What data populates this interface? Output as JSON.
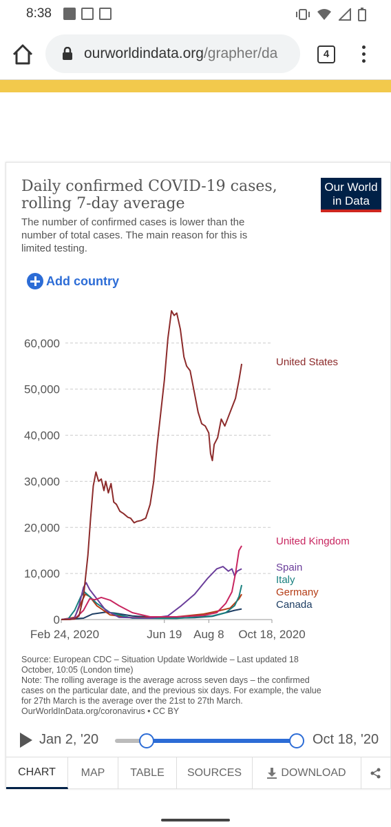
{
  "status_bar": {
    "time": "8:38"
  },
  "browser": {
    "url_host": "ourworldindata.org",
    "url_path": "/grapher/da",
    "tab_count": "4"
  },
  "card": {
    "title": "Daily confirmed COVID-19 cases, rolling 7-day average",
    "subtitle": "The number of confirmed cases is lower than the number of total cases. The main reason for this is limited testing.",
    "logo_line1": "Our World",
    "logo_line2": "in Data",
    "add_country": "Add country",
    "source_lines": [
      "Source: European CDC – Situation Update Worldwide – Last updated 18",
      "October, 10:05 (London time)",
      "Note: The rolling average is the average across seven days – the confirmed",
      "cases on the particular date, and the previous six days. For example, the value",
      "for 27th March is the average over the 21st to 27th March.",
      "OurWorldInData.org/coronavirus • CC BY"
    ]
  },
  "timeline": {
    "start_label": "Jan 2, '20",
    "end_label": "Oct 18, '20"
  },
  "tabs": [
    {
      "label": "CHART",
      "active": true
    },
    {
      "label": "MAP"
    },
    {
      "label": "TABLE"
    },
    {
      "label": "SOURCES"
    },
    {
      "label": "DOWNLOAD"
    }
  ],
  "chart_data": {
    "type": "line",
    "x_axis": "days since Feb 24, 2020",
    "xlim": [
      0,
      237
    ],
    "ylim": [
      0,
      67000
    ],
    "yticks": [
      0,
      10000,
      20000,
      30000,
      40000,
      50000,
      60000
    ],
    "ytick_labels": [
      "0",
      "10,000",
      "20,000",
      "30,000",
      "40,000",
      "50,000",
      "60,000"
    ],
    "xticks": [
      0,
      116,
      166,
      237
    ],
    "xtick_labels": [
      "Feb 24, 2020",
      "Jun 19",
      "Aug 8",
      "Oct 18, 2020"
    ],
    "grid": "horizontal dashed",
    "series": [
      {
        "name": "United States",
        "color": "#8c2a2a",
        "points": [
          [
            0,
            0
          ],
          [
            10,
            15
          ],
          [
            15,
            150
          ],
          [
            20,
            800
          ],
          [
            25,
            5000
          ],
          [
            30,
            14000
          ],
          [
            33,
            22000
          ],
          [
            36,
            29000
          ],
          [
            39,
            32000
          ],
          [
            42,
            30000
          ],
          [
            45,
            30500
          ],
          [
            48,
            28000
          ],
          [
            50,
            30000
          ],
          [
            53,
            27500
          ],
          [
            56,
            29500
          ],
          [
            59,
            25500
          ],
          [
            62,
            25000
          ],
          [
            66,
            23500
          ],
          [
            70,
            23000
          ],
          [
            75,
            22200
          ],
          [
            78,
            22000
          ],
          [
            82,
            21000
          ],
          [
            85,
            21300
          ],
          [
            90,
            21500
          ],
          [
            95,
            22000
          ],
          [
            100,
            25000
          ],
          [
            104,
            30000
          ],
          [
            108,
            38000
          ],
          [
            112,
            45000
          ],
          [
            116,
            52000
          ],
          [
            120,
            61000
          ],
          [
            124,
            67000
          ],
          [
            127,
            66000
          ],
          [
            130,
            66500
          ],
          [
            134,
            63000
          ],
          [
            138,
            57000
          ],
          [
            141,
            55000
          ],
          [
            145,
            54000
          ],
          [
            150,
            49000
          ],
          [
            154,
            45000
          ],
          [
            158,
            42500
          ],
          [
            162,
            42000
          ],
          [
            166,
            40500
          ],
          [
            168,
            36000
          ],
          [
            170,
            34500
          ],
          [
            172,
            38000
          ],
          [
            176,
            39500
          ],
          [
            180,
            43500
          ],
          [
            184,
            42000
          ],
          [
            188,
            44000
          ],
          [
            192,
            46000
          ],
          [
            196,
            48000
          ],
          [
            200,
            52000
          ],
          [
            203,
            55500
          ]
        ]
      },
      {
        "name": "United Kingdom",
        "color": "#c8255f",
        "points": [
          [
            0,
            0
          ],
          [
            15,
            100
          ],
          [
            25,
            2000
          ],
          [
            32,
            4500
          ],
          [
            38,
            4300
          ],
          [
            45,
            4800
          ],
          [
            55,
            4200
          ],
          [
            65,
            3000
          ],
          [
            80,
            1500
          ],
          [
            100,
            600
          ],
          [
            130,
            600
          ],
          [
            160,
            900
          ],
          [
            175,
            1500
          ],
          [
            185,
            3500
          ],
          [
            192,
            6000
          ],
          [
            196,
            10000
          ],
          [
            200,
            15000
          ],
          [
            203,
            16000
          ]
        ]
      },
      {
        "name": "Spain",
        "color": "#6a3d9a",
        "points": [
          [
            0,
            0
          ],
          [
            15,
            300
          ],
          [
            20,
            3000
          ],
          [
            25,
            7000
          ],
          [
            28,
            8000
          ],
          [
            32,
            6500
          ],
          [
            38,
            5000
          ],
          [
            50,
            2000
          ],
          [
            65,
            500
          ],
          [
            100,
            300
          ],
          [
            120,
            800
          ],
          [
            135,
            3000
          ],
          [
            150,
            5500
          ],
          [
            165,
            9000
          ],
          [
            175,
            11000
          ],
          [
            182,
            11500
          ],
          [
            188,
            10500
          ],
          [
            192,
            11000
          ],
          [
            195,
            9500
          ],
          [
            198,
            10500
          ],
          [
            203,
            11000
          ]
        ]
      },
      {
        "name": "Italy",
        "color": "#18807f",
        "points": [
          [
            0,
            0
          ],
          [
            8,
            200
          ],
          [
            15,
            2000
          ],
          [
            22,
            5000
          ],
          [
            26,
            6000
          ],
          [
            32,
            5000
          ],
          [
            40,
            3500
          ],
          [
            55,
            1500
          ],
          [
            80,
            300
          ],
          [
            130,
            250
          ],
          [
            170,
            800
          ],
          [
            185,
            1500
          ],
          [
            195,
            3000
          ],
          [
            200,
            5000
          ],
          [
            203,
            7500
          ]
        ]
      },
      {
        "name": "Germany",
        "color": "#b43c15",
        "points": [
          [
            0,
            0
          ],
          [
            15,
            500
          ],
          [
            22,
            3500
          ],
          [
            27,
            5500
          ],
          [
            32,
            5000
          ],
          [
            40,
            3000
          ],
          [
            55,
            1000
          ],
          [
            80,
            400
          ],
          [
            130,
            600
          ],
          [
            160,
            1200
          ],
          [
            175,
            1800
          ],
          [
            190,
            2500
          ],
          [
            200,
            4500
          ],
          [
            203,
            5500
          ]
        ]
      },
      {
        "name": "Canada",
        "color": "#1d3d63",
        "points": [
          [
            0,
            0
          ],
          [
            25,
            300
          ],
          [
            35,
            1200
          ],
          [
            50,
            1600
          ],
          [
            60,
            1400
          ],
          [
            80,
            800
          ],
          [
            120,
            300
          ],
          [
            150,
            400
          ],
          [
            170,
            700
          ],
          [
            185,
            1500
          ],
          [
            195,
            2000
          ],
          [
            203,
            2300
          ]
        ]
      }
    ]
  }
}
